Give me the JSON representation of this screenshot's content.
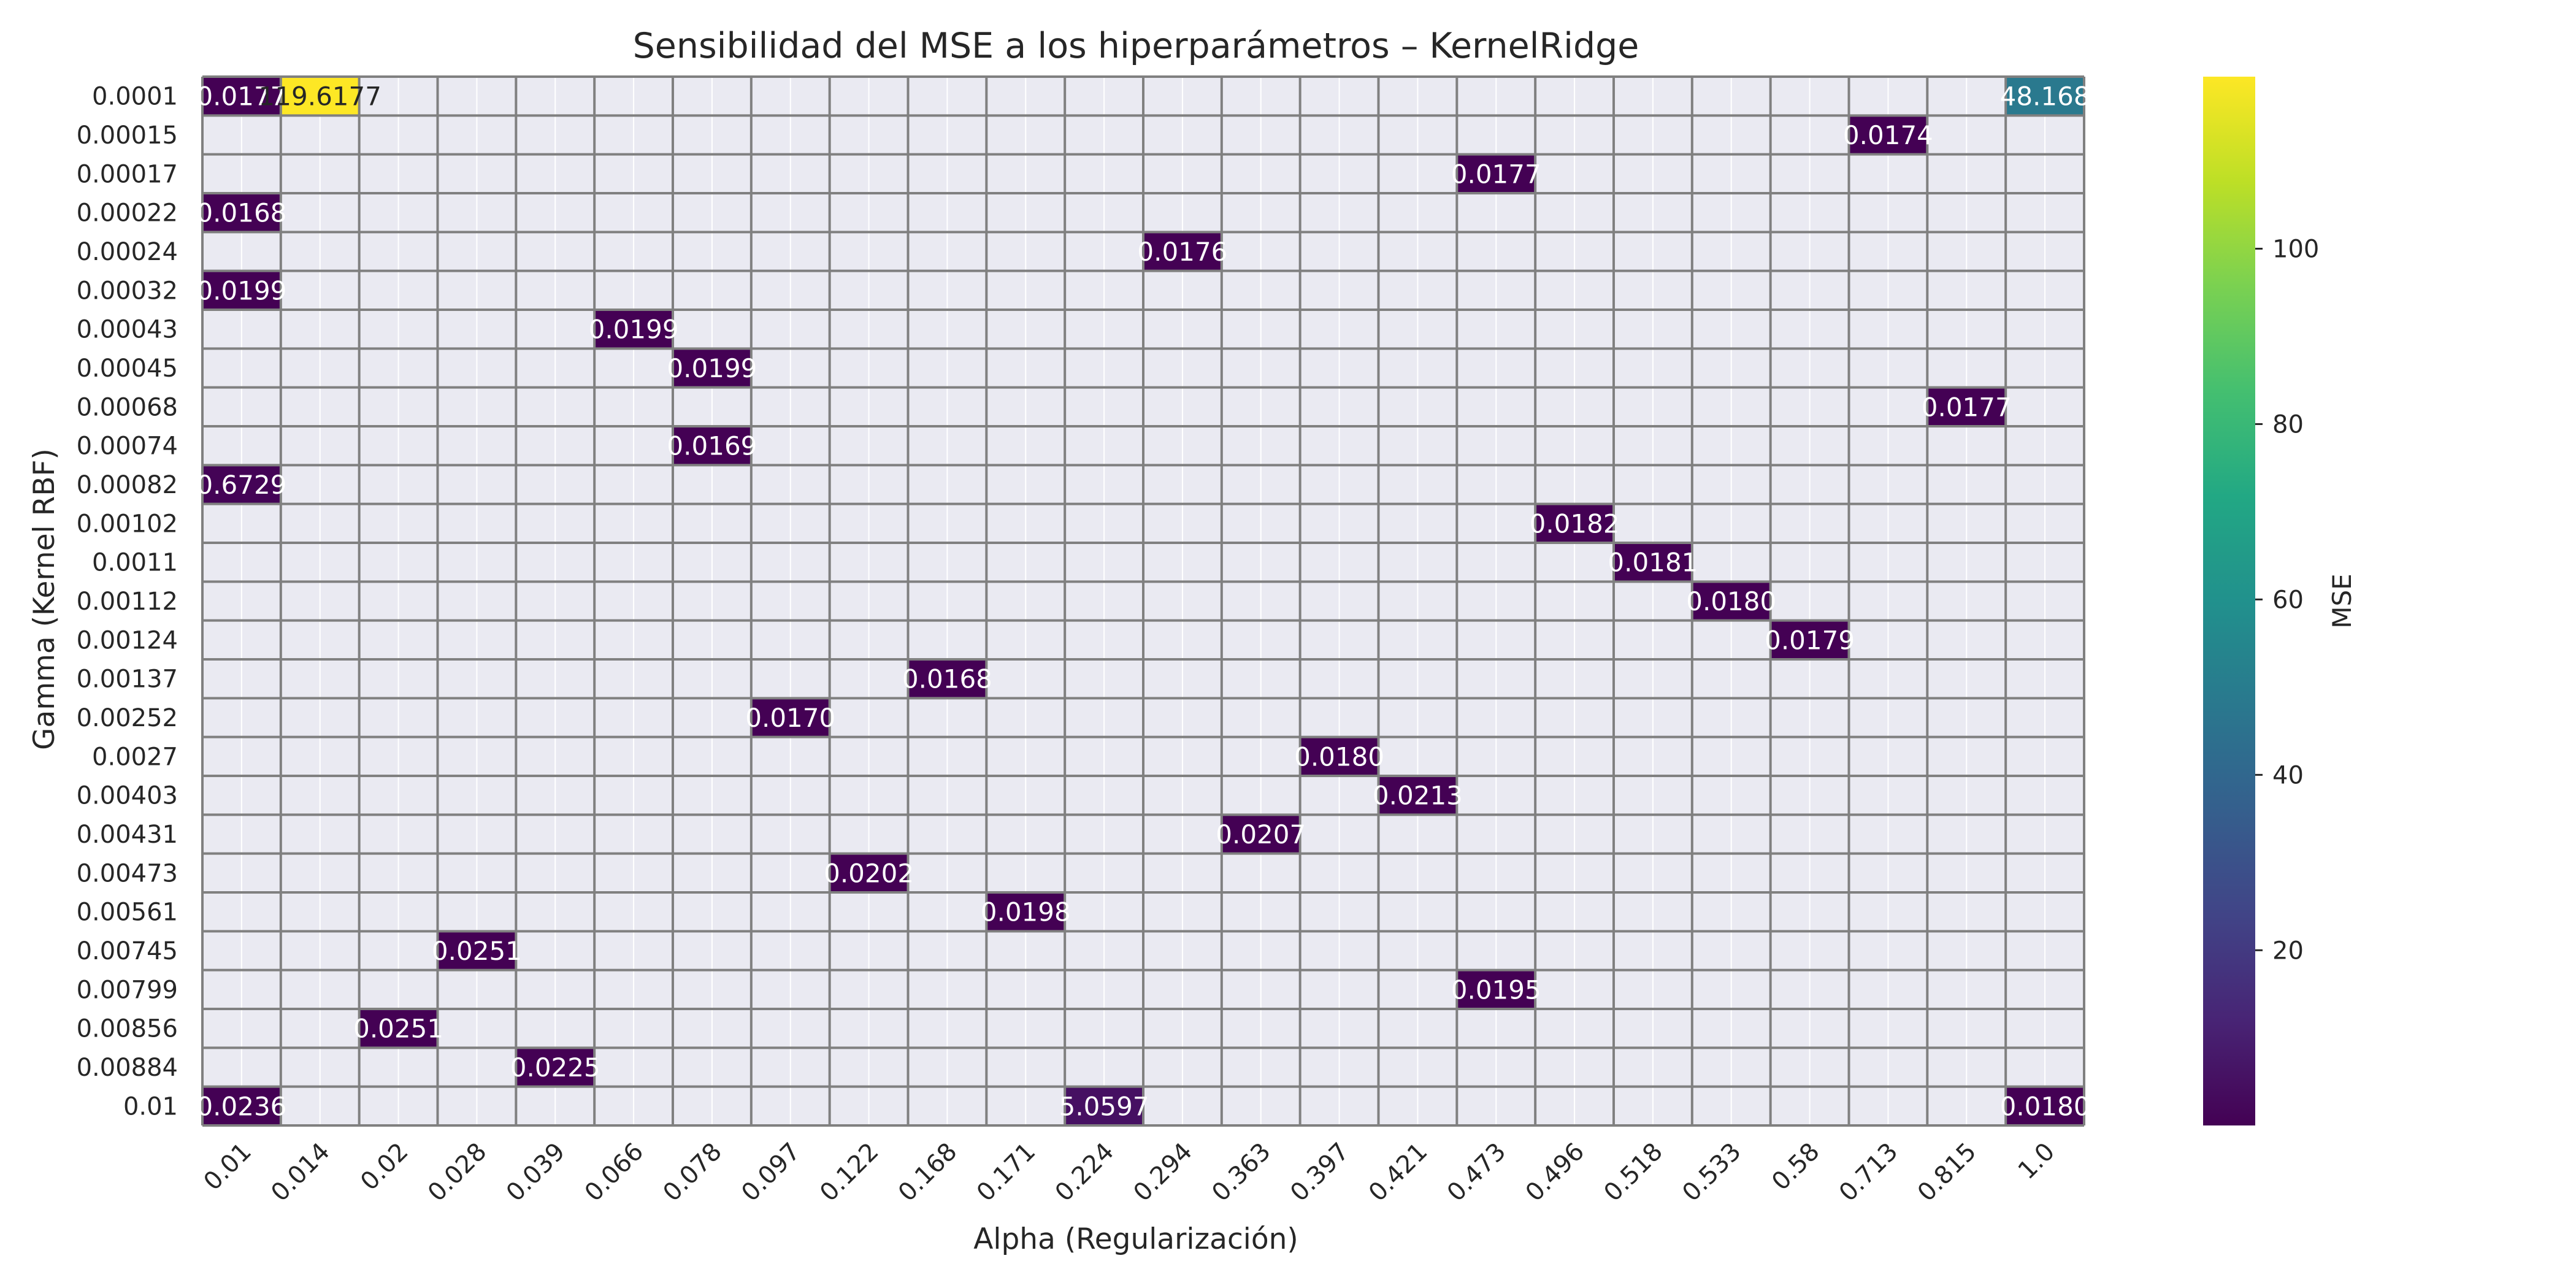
{
  "chart_data": {
    "type": "heatmap",
    "title": "Sensibilidad del MSE a los hiperparámetros – KernelRidge",
    "xlabel": "Alpha (Regularización)",
    "ylabel": "Gamma (Kernel RBF)",
    "x_categories": [
      "0.01",
      "0.014",
      "0.02",
      "0.028",
      "0.039",
      "0.066",
      "0.078",
      "0.097",
      "0.122",
      "0.168",
      "0.171",
      "0.224",
      "0.294",
      "0.363",
      "0.397",
      "0.421",
      "0.473",
      "0.496",
      "0.518",
      "0.533",
      "0.58",
      "0.713",
      "0.815",
      "1.0"
    ],
    "y_categories": [
      "0.0001",
      "0.00015",
      "0.00017",
      "0.00022",
      "0.00024",
      "0.00032",
      "0.00043",
      "0.00045",
      "0.00068",
      "0.00074",
      "0.00082",
      "0.00102",
      "0.0011",
      "0.00112",
      "0.00124",
      "0.00137",
      "0.00252",
      "0.0027",
      "0.00403",
      "0.00431",
      "0.00473",
      "0.00561",
      "0.00745",
      "0.00799",
      "0.00856",
      "0.00884",
      "0.01"
    ],
    "cells": [
      {
        "x": "0.01",
        "y": "0.0001",
        "value": 0.0177,
        "label": "0.0177"
      },
      {
        "x": "0.014",
        "y": "0.0001",
        "value": 119.6177,
        "label": "119.6177"
      },
      {
        "x": "1.0",
        "y": "0.0001",
        "value": 48.168,
        "label": "48.168"
      },
      {
        "x": "0.713",
        "y": "0.00015",
        "value": 0.0174,
        "label": "0.0174"
      },
      {
        "x": "0.473",
        "y": "0.00017",
        "value": 0.0177,
        "label": "0.0177"
      },
      {
        "x": "0.01",
        "y": "0.00022",
        "value": 0.0168,
        "label": "0.0168"
      },
      {
        "x": "0.294",
        "y": "0.00024",
        "value": 0.0176,
        "label": "0.0176"
      },
      {
        "x": "0.01",
        "y": "0.00032",
        "value": 0.0199,
        "label": "0.0199"
      },
      {
        "x": "0.066",
        "y": "0.00043",
        "value": 0.0199,
        "label": "0.0199"
      },
      {
        "x": "0.078",
        "y": "0.00045",
        "value": 0.0199,
        "label": "0.0199"
      },
      {
        "x": "0.815",
        "y": "0.00068",
        "value": 0.0177,
        "label": "0.0177"
      },
      {
        "x": "0.078",
        "y": "0.00074",
        "value": 0.0169,
        "label": "0.0169"
      },
      {
        "x": "0.01",
        "y": "0.00082",
        "value": 0.6729,
        "label": "0.6729"
      },
      {
        "x": "0.496",
        "y": "0.00102",
        "value": 0.0182,
        "label": "0.0182"
      },
      {
        "x": "0.518",
        "y": "0.0011",
        "value": 0.0181,
        "label": "0.0181"
      },
      {
        "x": "0.533",
        "y": "0.00112",
        "value": 0.018,
        "label": "0.0180"
      },
      {
        "x": "0.58",
        "y": "0.00124",
        "value": 0.0179,
        "label": "0.0179"
      },
      {
        "x": "0.168",
        "y": "0.00137",
        "value": 0.0168,
        "label": "0.0168"
      },
      {
        "x": "0.097",
        "y": "0.00252",
        "value": 0.017,
        "label": "0.0170"
      },
      {
        "x": "0.397",
        "y": "0.0027",
        "value": 0.018,
        "label": "0.0180"
      },
      {
        "x": "0.421",
        "y": "0.00403",
        "value": 0.0213,
        "label": "0.0213"
      },
      {
        "x": "0.363",
        "y": "0.00431",
        "value": 0.0207,
        "label": "0.0207"
      },
      {
        "x": "0.122",
        "y": "0.00473",
        "value": 0.0202,
        "label": "0.0202"
      },
      {
        "x": "0.171",
        "y": "0.00561",
        "value": 0.0198,
        "label": "0.0198"
      },
      {
        "x": "0.028",
        "y": "0.00745",
        "value": 0.0251,
        "label": "0.0251"
      },
      {
        "x": "0.473",
        "y": "0.00799",
        "value": 0.0195,
        "label": "0.0195"
      },
      {
        "x": "0.02",
        "y": "0.00856",
        "value": 0.0251,
        "label": "0.0251"
      },
      {
        "x": "0.039",
        "y": "0.00884",
        "value": 0.0225,
        "label": "0.0225"
      },
      {
        "x": "0.01",
        "y": "0.01",
        "value": 0.0236,
        "label": "0.0236"
      },
      {
        "x": "0.224",
        "y": "0.01",
        "value": 5.0597,
        "label": "5.0597"
      },
      {
        "x": "1.0",
        "y": "0.01",
        "value": 0.018,
        "label": "0.0180"
      }
    ],
    "colorbar": {
      "label": "MSE",
      "colormap": "viridis",
      "vmin": 0.0168,
      "vmax": 119.6177,
      "ticks": [
        20,
        40,
        60,
        80,
        100
      ]
    },
    "missing_cell_color": "#eaeaf2",
    "grid": true
  }
}
